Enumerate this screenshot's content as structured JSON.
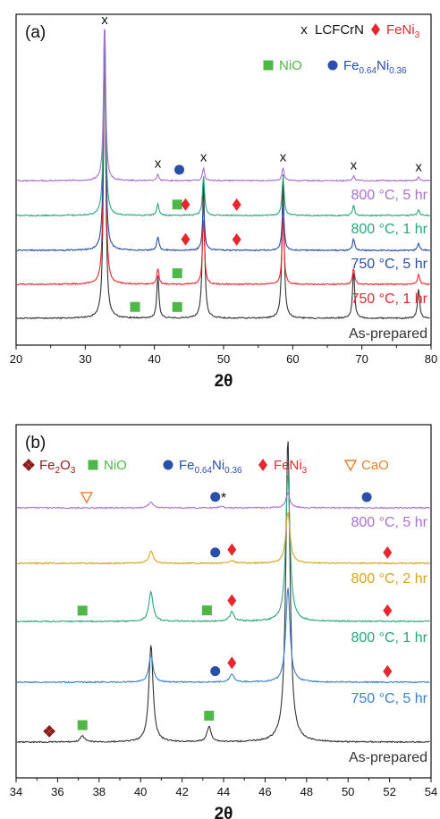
{
  "chart_data": [
    {
      "type": "line",
      "panel_label": "(a)",
      "xlabel": "2θ",
      "xlim": [
        20,
        80
      ],
      "x_ticks": [
        "20",
        "30",
        "40",
        "50",
        "60",
        "70",
        "80"
      ],
      "legend": [
        {
          "symbol": "x",
          "name": "LCFCrN",
          "color": "#111111"
        },
        {
          "symbol": "diamond",
          "name": "FeNi",
          "sub": "3",
          "color": "#e8262e"
        },
        {
          "symbol": "square",
          "name": "NiO",
          "color": "#4db848"
        },
        {
          "symbol": "circle",
          "name": "Fe",
          "sub": "0.64",
          "name2": "Ni",
          "sub2": "0.36",
          "color": "#2a4fa8"
        }
      ],
      "series": [
        {
          "name": "As-prepared",
          "color": "#333333",
          "peaks": [
            [
              32.8,
              1.0
            ],
            [
              40.5,
              0.14
            ],
            [
              47.1,
              0.47
            ],
            [
              58.6,
              0.48
            ],
            [
              68.8,
              0.16
            ],
            [
              78.2,
              0.1
            ]
          ],
          "markers": [
            {
              "x": 37.2,
              "s": "square"
            },
            {
              "x": 43.3,
              "s": "square"
            }
          ]
        },
        {
          "name": "750 °C, 1 hr",
          "color": "#e8262e",
          "peaks": [
            [
              32.8,
              1.0
            ],
            [
              40.5,
              0.06
            ],
            [
              47.1,
              0.25
            ],
            [
              58.6,
              0.25
            ],
            [
              68.8,
              0.06
            ],
            [
              78.2,
              0.04
            ]
          ],
          "markers": [
            {
              "x": 43.3,
              "s": "square"
            }
          ]
        },
        {
          "name": "750 °C, 5 hr",
          "color": "#2a4fa8",
          "peaks": [
            [
              32.8,
              1.0
            ],
            [
              40.5,
              0.06
            ],
            [
              47.1,
              0.2
            ],
            [
              58.6,
              0.2
            ],
            [
              68.8,
              0.05
            ],
            [
              78.2,
              0.03
            ]
          ],
          "markers": [
            {
              "x": 44.5,
              "s": "diamond"
            },
            {
              "x": 51.9,
              "s": "diamond"
            }
          ]
        },
        {
          "name": "800 °C, 1 hr",
          "color": "#2aa57c",
          "peaks": [
            [
              32.8,
              1.0
            ],
            [
              40.5,
              0.06
            ],
            [
              47.1,
              0.2
            ],
            [
              58.6,
              0.2
            ],
            [
              68.8,
              0.05
            ],
            [
              78.2,
              0.03
            ]
          ],
          "markers": [
            {
              "x": 43.3,
              "s": "square"
            },
            {
              "x": 44.5,
              "s": "diamond"
            },
            {
              "x": 51.9,
              "s": "diamond"
            }
          ]
        },
        {
          "name": "800 °C, 5 hr",
          "color": "#a970d0",
          "peaks": [
            [
              32.8,
              1.0
            ],
            [
              40.5,
              0.04
            ],
            [
              47.1,
              0.08
            ],
            [
              58.6,
              0.08
            ],
            [
              68.8,
              0.03
            ],
            [
              78.2,
              0.02
            ]
          ],
          "markers": [
            {
              "x": 40.5,
              "s": "x"
            },
            {
              "x": 43.6,
              "s": "circle"
            },
            {
              "x": 47.1,
              "s": "x"
            },
            {
              "x": 58.6,
              "s": "x"
            },
            {
              "x": 68.8,
              "s": "x"
            },
            {
              "x": 78.2,
              "s": "x"
            },
            {
              "x": 32.8,
              "s": "x",
              "top": true
            }
          ]
        }
      ]
    },
    {
      "type": "line",
      "panel_label": "(b)",
      "xlabel": "2θ",
      "xlim": [
        34,
        54
      ],
      "x_ticks": [
        "34",
        "36",
        "38",
        "40",
        "42",
        "44",
        "46",
        "48",
        "50",
        "52",
        "54"
      ],
      "legend": [
        {
          "symbol": "clover",
          "name": "Fe",
          "sub": "2",
          "name2": "O",
          "sub2": "3",
          "color": "#8b1a1a"
        },
        {
          "symbol": "square",
          "name": "NiO",
          "color": "#4db848"
        },
        {
          "symbol": "circle",
          "name": "Fe",
          "sub": "0.64",
          "name2": "Ni",
          "sub2": "0.36",
          "color": "#2a4fa8"
        },
        {
          "symbol": "diamond",
          "name": "FeNi",
          "sub": "3",
          "color": "#e8262e"
        },
        {
          "symbol": "triangle",
          "name": "CaO",
          "color": "#ee7d2c"
        }
      ],
      "series": [
        {
          "name": "As-prepared",
          "color": "#333333",
          "peaks": [
            [
              40.5,
              0.32
            ],
            [
              43.3,
              0.05
            ],
            [
              47.1,
              1.0
            ],
            [
              37.2,
              0.02
            ]
          ],
          "markers": [
            {
              "x": 35.6,
              "s": "clover"
            },
            {
              "x": 37.2,
              "s": "square"
            },
            {
              "x": 43.3,
              "s": "square"
            }
          ]
        },
        {
          "name": "750 °C, 5 hr",
          "color": "#3a7fd0",
          "peaks": [
            [
              40.5,
              0.13
            ],
            [
              44.4,
              0.04
            ],
            [
              47.1,
              0.45
            ]
          ],
          "markers": [
            {
              "x": 43.6,
              "s": "circle"
            },
            {
              "x": 44.4,
              "s": "diamond"
            },
            {
              "x": 51.9,
              "s": "diamond"
            }
          ]
        },
        {
          "name": "800 °C, 1 hr",
          "color": "#2aa57c",
          "peaks": [
            [
              40.5,
              0.15
            ],
            [
              44.4,
              0.05
            ],
            [
              47.1,
              0.75
            ]
          ],
          "markers": [
            {
              "x": 37.2,
              "s": "square"
            },
            {
              "x": 43.2,
              "s": "square"
            },
            {
              "x": 44.4,
              "s": "diamond"
            },
            {
              "x": 51.9,
              "s": "diamond"
            }
          ]
        },
        {
          "name": "800 °C, 2 hr",
          "color": "#d6a520",
          "peaks": [
            [
              40.5,
              0.13
            ],
            [
              44.4,
              0.03
            ],
            [
              47.1,
              0.55
            ]
          ],
          "markers": [
            {
              "x": 43.6,
              "s": "circle"
            },
            {
              "x": 44.4,
              "s": "diamond"
            },
            {
              "x": 51.9,
              "s": "diamond"
            }
          ]
        },
        {
          "name": "800 °C, 5 hr",
          "color": "#a970d0",
          "peaks": [
            [
              40.5,
              0.12
            ],
            [
              43.9,
              0.03
            ],
            [
              47.1,
              0.28
            ]
          ],
          "markers": [
            {
              "x": 37.4,
              "s": "triangle"
            },
            {
              "x": 43.6,
              "s": "circle"
            },
            {
              "x": 44.0,
              "s": "asterisk"
            },
            {
              "x": 50.9,
              "s": "circle"
            }
          ]
        }
      ]
    }
  ]
}
